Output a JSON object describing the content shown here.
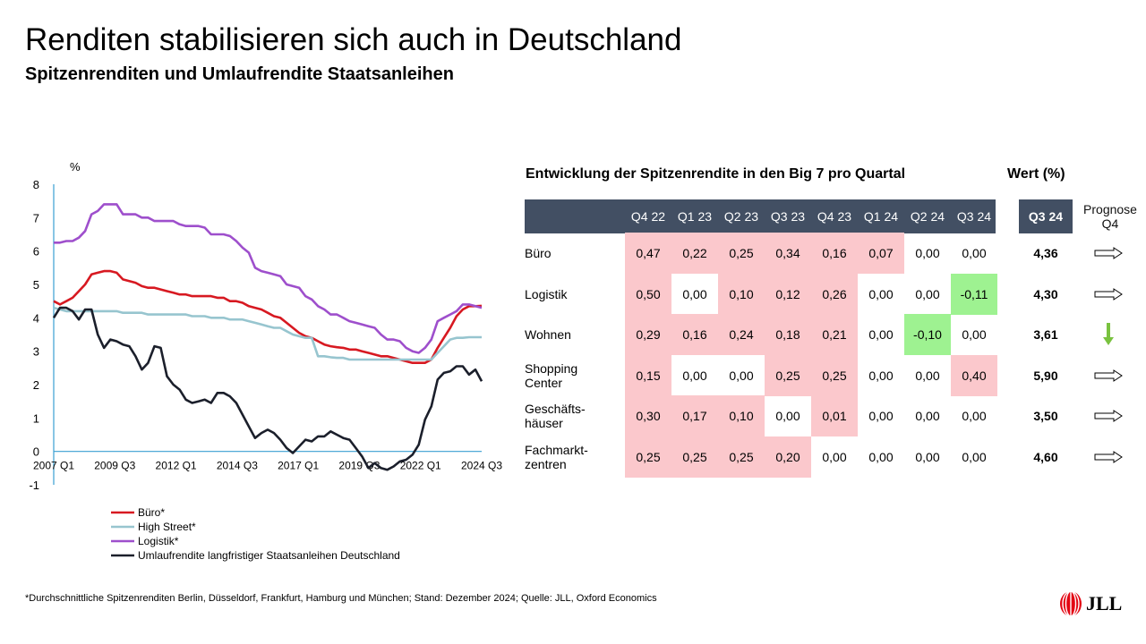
{
  "title": "Renditen stabilisieren sich auch in Deutschland",
  "subtitle": "Spitzenrenditen und Umlaufrendite Staatsanleihen",
  "chart_data": {
    "type": "line",
    "ylabel": "%",
    "ylim": [
      -1,
      8
    ],
    "yticks": [
      "8",
      "7",
      "6",
      "5",
      "4",
      "3",
      "2",
      "1",
      "0",
      "-1"
    ],
    "xtick_labels": [
      "2007 Q1",
      "2009 Q3",
      "2012 Q1",
      "2014 Q3",
      "2017 Q1",
      "2019 Q3",
      "2022 Q1",
      "2024 Q3"
    ],
    "legend_placement": "bottom-left",
    "series": [
      {
        "name": "Büro*",
        "color": "#d71921",
        "values": [
          4.5,
          4.4,
          4.5,
          4.6,
          4.8,
          5.0,
          5.3,
          5.35,
          5.4,
          5.4,
          5.35,
          5.15,
          5.1,
          5.05,
          4.95,
          4.9,
          4.9,
          4.85,
          4.8,
          4.75,
          4.7,
          4.7,
          4.65,
          4.65,
          4.65,
          4.65,
          4.6,
          4.6,
          4.5,
          4.5,
          4.45,
          4.35,
          4.3,
          4.25,
          4.15,
          4.05,
          4.0,
          3.85,
          3.7,
          3.55,
          3.45,
          3.4,
          3.3,
          3.2,
          3.15,
          3.12,
          3.1,
          3.05,
          3.05,
          3.0,
          2.95,
          2.9,
          2.85,
          2.85,
          2.8,
          2.75,
          2.7,
          2.65,
          2.65,
          2.65,
          2.75,
          3.1,
          3.4,
          3.7,
          4.05,
          4.25,
          4.35,
          4.35,
          4.36
        ]
      },
      {
        "name": "High Street*",
        "color": "#97c5cf",
        "values": [
          4.3,
          4.25,
          4.2,
          4.2,
          4.2,
          4.2,
          4.2,
          4.2,
          4.2,
          4.2,
          4.2,
          4.15,
          4.15,
          4.15,
          4.15,
          4.1,
          4.1,
          4.1,
          4.1,
          4.1,
          4.1,
          4.1,
          4.05,
          4.05,
          4.05,
          4.0,
          4.0,
          4.0,
          3.95,
          3.95,
          3.95,
          3.9,
          3.85,
          3.8,
          3.75,
          3.7,
          3.7,
          3.6,
          3.5,
          3.45,
          3.4,
          3.4,
          2.85,
          2.85,
          2.82,
          2.8,
          2.8,
          2.75,
          2.75,
          2.75,
          2.75,
          2.75,
          2.75,
          2.75,
          2.75,
          2.75,
          2.75,
          2.75,
          2.75,
          2.75,
          2.75,
          2.95,
          3.15,
          3.35,
          3.4,
          3.4,
          3.42,
          3.42,
          3.42
        ]
      },
      {
        "name": "Logistik*",
        "color": "#9e4fcc",
        "values": [
          6.25,
          6.25,
          6.3,
          6.3,
          6.4,
          6.6,
          7.1,
          7.2,
          7.4,
          7.4,
          7.4,
          7.1,
          7.1,
          7.1,
          7.0,
          7.0,
          6.9,
          6.9,
          6.9,
          6.9,
          6.8,
          6.75,
          6.75,
          6.75,
          6.7,
          6.5,
          6.5,
          6.5,
          6.45,
          6.3,
          6.1,
          5.95,
          5.5,
          5.4,
          5.35,
          5.3,
          5.25,
          5.0,
          4.95,
          4.9,
          4.65,
          4.55,
          4.35,
          4.25,
          4.1,
          4.1,
          4.0,
          3.9,
          3.85,
          3.8,
          3.75,
          3.7,
          3.5,
          3.35,
          3.35,
          3.3,
          3.1,
          3.0,
          2.95,
          3.1,
          3.35,
          3.9,
          4.0,
          4.1,
          4.2,
          4.4,
          4.4,
          4.35,
          4.3
        ]
      },
      {
        "name": "Umlaufrendite langfristiger Staatsanleihen Deutschland",
        "color": "#1b1f2b",
        "values": [
          4.0,
          4.3,
          4.3,
          4.2,
          3.95,
          4.25,
          4.25,
          3.5,
          3.1,
          3.35,
          3.3,
          3.2,
          3.15,
          2.85,
          2.45,
          2.65,
          3.15,
          3.1,
          2.25,
          2.0,
          1.85,
          1.55,
          1.45,
          1.5,
          1.55,
          1.45,
          1.75,
          1.75,
          1.65,
          1.45,
          1.1,
          0.75,
          0.4,
          0.55,
          0.65,
          0.55,
          0.35,
          0.1,
          -0.05,
          0.15,
          0.35,
          0.3,
          0.45,
          0.45,
          0.6,
          0.5,
          0.4,
          0.35,
          0.1,
          -0.15,
          -0.5,
          -0.35,
          -0.5,
          -0.55,
          -0.45,
          -0.3,
          -0.25,
          -0.1,
          0.2,
          0.95,
          1.35,
          2.15,
          2.35,
          2.4,
          2.55,
          2.55,
          2.3,
          2.45,
          2.1
        ]
      }
    ]
  },
  "table": {
    "heading": "Entwicklung der Spitzenrendite in den Big 7 pro Quartal",
    "wert_heading": "Wert (%)",
    "quarters": [
      "Q4 22",
      "Q1 23",
      "Q2 23",
      "Q3 23",
      "Q4 23",
      "Q1 24",
      "Q2 24",
      "Q3 24"
    ],
    "current_label": "Q3 24",
    "prognose_label": "Prognose",
    "prognose_q": "Q4",
    "rows": [
      {
        "label1": "Büro",
        "label2": "",
        "values": [
          "0,47",
          "0,22",
          "0,25",
          "0,34",
          "0,16",
          "0,07",
          "0,00",
          "0,00"
        ],
        "shade": [
          "p",
          "p",
          "p",
          "p",
          "p",
          "p",
          "w",
          "w"
        ],
        "wert": "4,36",
        "prognose": "right"
      },
      {
        "label1": "Logistik",
        "label2": "",
        "values": [
          "0,50",
          "0,00",
          "0,10",
          "0,12",
          "0,26",
          "0,00",
          "0,00",
          "-0,11"
        ],
        "shade": [
          "p",
          "w",
          "p",
          "p",
          "p",
          "w",
          "w",
          "g"
        ],
        "wert": "4,30",
        "prognose": "right"
      },
      {
        "label1": "Wohnen",
        "label2": "",
        "values": [
          "0,29",
          "0,16",
          "0,24",
          "0,18",
          "0,21",
          "0,00",
          "-0,10",
          "0,00"
        ],
        "shade": [
          "p",
          "p",
          "p",
          "p",
          "p",
          "w",
          "g",
          "w"
        ],
        "wert": "3,61",
        "prognose": "down"
      },
      {
        "label1": "Shopping",
        "label2": "Center",
        "values": [
          "0,15",
          "0,00",
          "0,00",
          "0,25",
          "0,25",
          "0,00",
          "0,00",
          "0,40"
        ],
        "shade": [
          "p",
          "w",
          "w",
          "p",
          "p",
          "w",
          "w",
          "p"
        ],
        "wert": "5,90",
        "prognose": "right"
      },
      {
        "label1": "Geschäfts-",
        "label2": "häuser",
        "values": [
          "0,30",
          "0,17",
          "0,10",
          "0,00",
          "0,01",
          "0,00",
          "0,00",
          "0,00"
        ],
        "shade": [
          "p",
          "p",
          "p",
          "w",
          "p",
          "w",
          "w",
          "w"
        ],
        "wert": "3,50",
        "prognose": "right"
      },
      {
        "label1": "Fachmarkt-",
        "label2": "zentren",
        "values": [
          "0,25",
          "0,25",
          "0,25",
          "0,20",
          "0,00",
          "0,00",
          "0,00",
          "0,00"
        ],
        "shade": [
          "p",
          "p",
          "p",
          "p",
          "w",
          "w",
          "w",
          "w"
        ],
        "wert": "4,60",
        "prognose": "right"
      }
    ]
  },
  "colors": {
    "pink": "#fbc8cc",
    "green": "#9ef291",
    "header": "#424f63",
    "down_arrow": "#79c23f"
  },
  "footnote": "*Durchschnittliche Spitzenrenditen Berlin, Düsseldorf, Frankfurt, Hamburg und München; Stand: Dezember 2024; Quelle: JLL, Oxford Economics",
  "logo_text": "JLL"
}
